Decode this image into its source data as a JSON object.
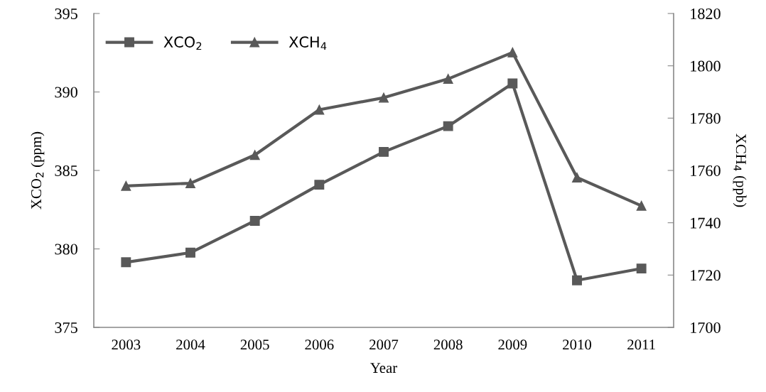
{
  "chart_data": {
    "type": "line",
    "xlabel": "Year",
    "ylabel": "XCO$_{2}$ (ppm)",
    "y2label": "XCH$_{4}$ (ppb)",
    "categories": [
      "2003",
      "2004",
      "2005",
      "2006",
      "2007",
      "2008",
      "2009",
      "2010",
      "2011"
    ],
    "series": [
      {
        "name": "XCO$_{2}$",
        "color": "#595959",
        "marker": "square",
        "values": [
          379.15,
          379.76,
          381.79,
          384.09,
          386.18,
          387.82,
          390.54,
          378.0,
          378.75
        ]
      },
      {
        "name": "XCH$_{4}$",
        "color": "#595959",
        "marker": "triangle",
        "axis": "y2",
        "values": [
          1754.1,
          1755.1,
          1765.9,
          1783.2,
          1787.8,
          1795.0,
          1805.1,
          1757.3,
          1746.5
        ]
      }
    ],
    "ylim": [
      375,
      395
    ],
    "yticks": [
      375,
      380,
      385,
      390,
      395
    ],
    "y2lim": [
      1700,
      1820
    ],
    "y2ticks": [
      1700,
      1720,
      1740,
      1760,
      1780,
      1800,
      1820
    ],
    "grid": false,
    "legend": "top left",
    "line_style": "solid"
  }
}
